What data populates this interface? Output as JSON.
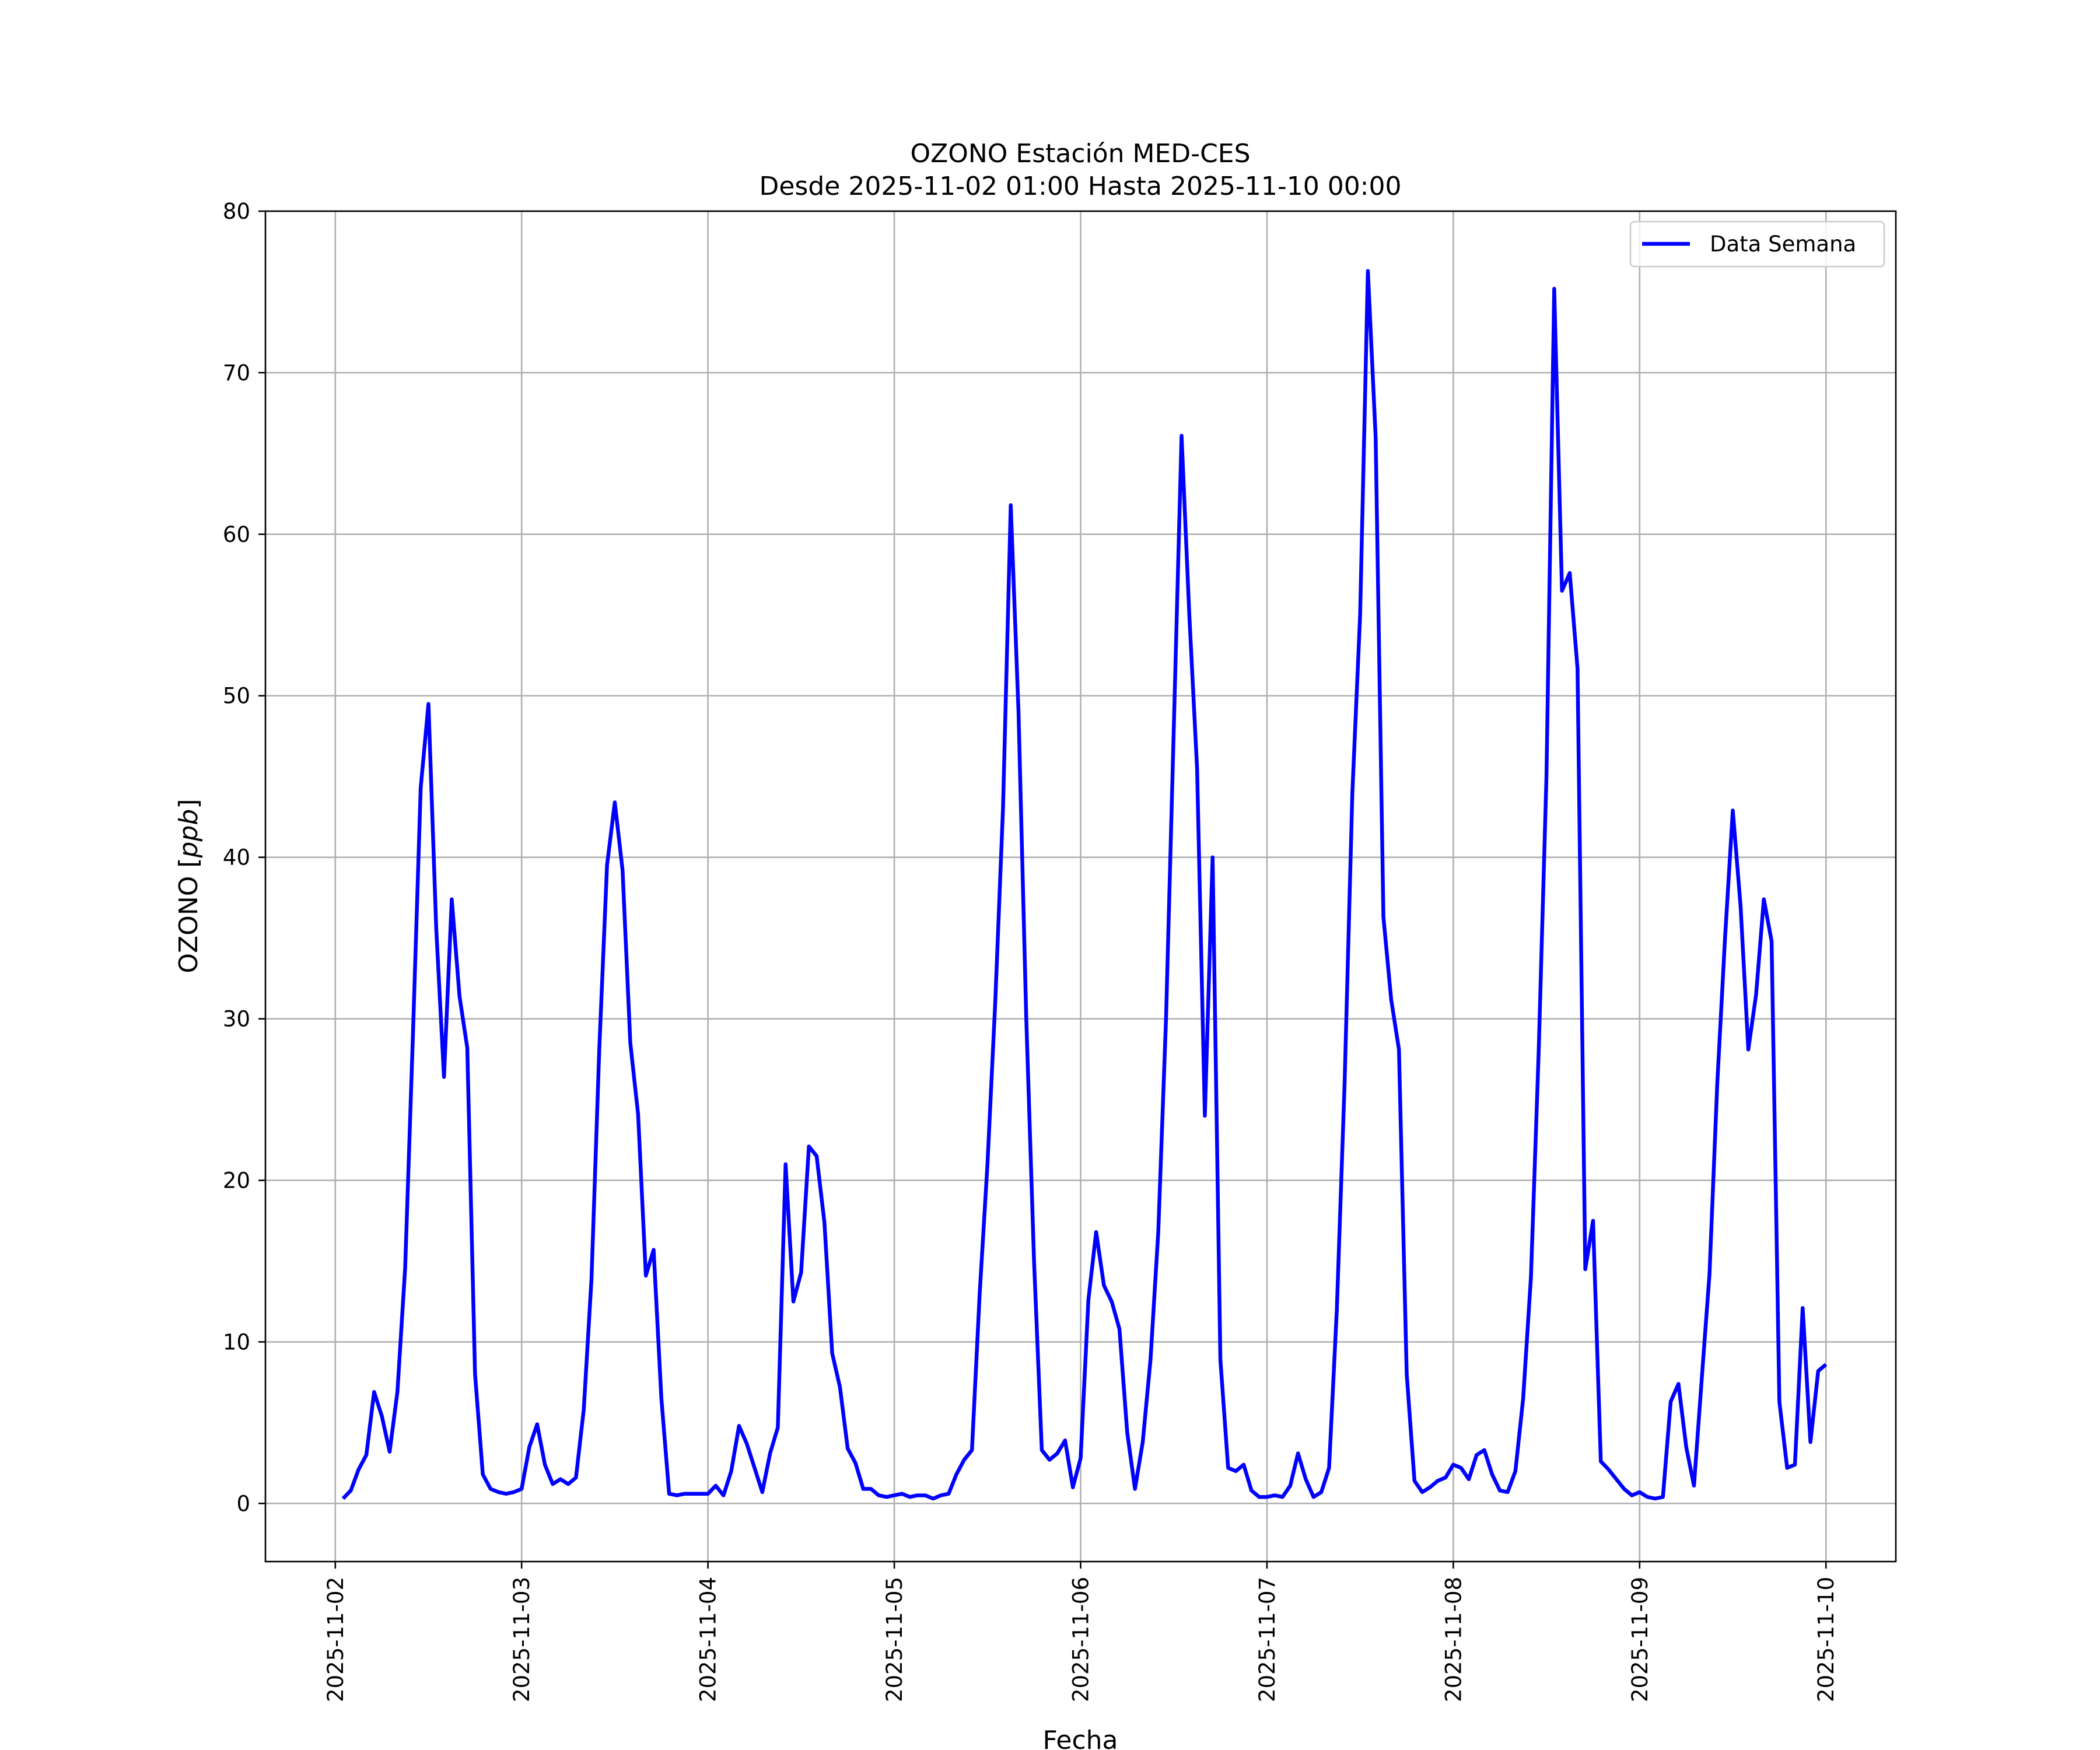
{
  "chart_data": {
    "type": "line",
    "title": "OZONO Estación MED-CES",
    "subtitle": "Desde 2025-11-02 01:00 Hasta 2025-11-10 00:00",
    "xlabel": "Fecha",
    "ylabel_main": "OZONO [",
    "ylabel_unit": "ppb",
    "ylabel_close": "]",
    "xlim": [
      "2025-11-01 15:00",
      "2025-11-10 09:00"
    ],
    "ylim": [
      -3.6,
      80
    ],
    "x_ticks": [
      "2025-11-02",
      "2025-11-03",
      "2025-11-04",
      "2025-11-05",
      "2025-11-06",
      "2025-11-07",
      "2025-11-08",
      "2025-11-09",
      "2025-11-10"
    ],
    "y_ticks": [
      0,
      10,
      20,
      30,
      40,
      50,
      60,
      70,
      80
    ],
    "grid": true,
    "legend_position": "top-right",
    "series": [
      {
        "name": "Data Semana",
        "color": "#0000ff",
        "start": "2025-11-02 01:00",
        "step_hours": 1,
        "values": [
          0.3,
          0.8,
          2.1,
          3.0,
          6.9,
          5.4,
          3.2,
          6.9,
          14.6,
          29.0,
          44.3,
          49.5,
          35.6,
          26.4,
          37.4,
          31.4,
          28.2,
          8.0,
          1.8,
          0.9,
          0.7,
          0.6,
          0.7,
          0.9,
          3.5,
          4.9,
          2.4,
          1.2,
          1.5,
          1.2,
          1.6,
          5.8,
          13.9,
          28.1,
          39.5,
          43.4,
          39.2,
          28.5,
          24.1,
          14.1,
          15.7,
          6.5,
          0.6,
          0.5,
          0.6,
          0.6,
          0.6,
          0.6,
          1.1,
          0.5,
          2.0,
          4.8,
          3.7,
          2.2,
          0.7,
          3.1,
          4.7,
          21.0,
          12.5,
          14.3,
          22.1,
          21.5,
          17.4,
          9.3,
          7.2,
          3.4,
          2.5,
          0.9,
          0.9,
          0.5,
          0.4,
          0.5,
          0.6,
          0.4,
          0.5,
          0.5,
          0.3,
          0.5,
          0.6,
          1.8,
          2.7,
          3.3,
          13.0,
          21.0,
          31.0,
          43.0,
          61.8,
          49.0,
          30.0,
          15.0,
          3.3,
          2.7,
          3.1,
          3.9,
          1.0,
          2.8,
          12.6,
          16.8,
          13.5,
          12.5,
          10.8,
          4.4,
          0.9,
          3.8,
          8.9,
          16.8,
          30.0,
          48.0,
          66.1,
          55.0,
          45.5,
          24.0,
          40.0,
          8.9,
          2.2,
          2.0,
          2.4,
          0.8,
          0.4,
          0.4,
          0.5,
          0.4,
          1.1,
          3.1,
          1.5,
          0.4,
          0.7,
          2.2,
          12.0,
          26.0,
          44.0,
          55.0,
          76.3,
          66.0,
          36.3,
          31.2,
          28.1,
          8.0,
          1.4,
          0.7,
          1.0,
          1.4,
          1.6,
          2.4,
          2.2,
          1.5,
          3.0,
          3.3,
          1.8,
          0.8,
          0.7,
          2.0,
          6.5,
          14.0,
          28.0,
          45.0,
          75.2,
          56.5,
          57.6,
          51.7,
          14.5,
          17.5,
          2.6,
          2.1,
          1.5,
          0.9,
          0.5,
          0.7,
          0.4,
          0.3,
          0.4,
          6.3,
          7.4,
          3.5,
          1.1,
          7.7,
          14.2,
          26.0,
          35.0,
          42.9,
          37.0,
          28.1,
          31.5,
          37.4,
          34.8,
          6.3,
          2.2,
          2.4,
          12.1,
          3.8,
          8.2,
          8.6
        ]
      }
    ]
  }
}
